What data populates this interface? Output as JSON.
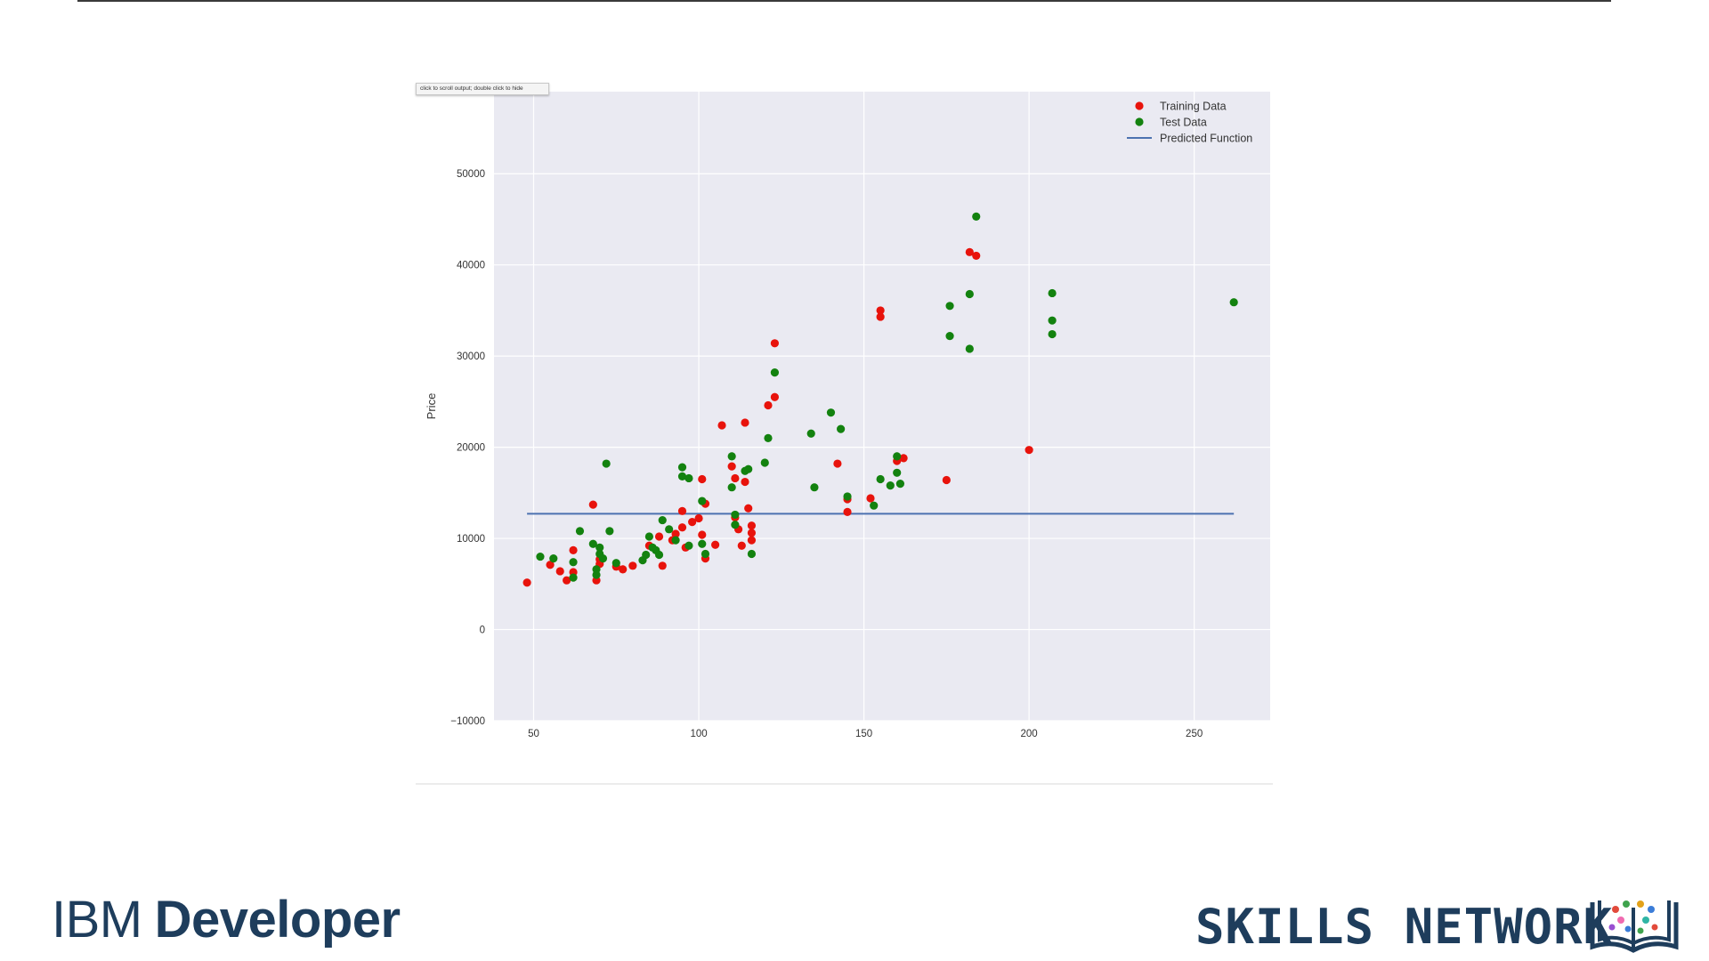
{
  "notebook": {
    "output_tooltip": "click to scroll output; double click to hide"
  },
  "branding": {
    "ibm_prefix": "IBM",
    "ibm_product": "Developer",
    "skills_network": "SKILLS NETWORK"
  },
  "colors": {
    "plot_background": "#eaeaf2",
    "grid": "#ffffff",
    "training": "#e8130c",
    "test": "#13820f",
    "predicted": "#4c72b0",
    "brand_blue": "#1e3d5c"
  },
  "icons": [
    "book-network-icon"
  ],
  "chart_data": {
    "type": "scatter",
    "title": "",
    "xlabel": "",
    "ylabel": "Price",
    "xlim": [
      38,
      273
    ],
    "ylim": [
      -10000,
      59000
    ],
    "xticks": [
      50,
      100,
      150,
      200,
      250
    ],
    "yticks": [
      -10000,
      0,
      10000,
      20000,
      30000,
      40000,
      50000
    ],
    "ytick_labels": [
      "−10000",
      "0",
      "10000",
      "20000",
      "30000",
      "40000",
      "50000"
    ],
    "grid": true,
    "legend_position": "top-right",
    "legend": [
      "Training Data",
      "Test Data",
      "Predicted Function"
    ],
    "series": [
      {
        "name": "Training Data",
        "type": "scatter",
        "color": "#e8130c",
        "points": [
          [
            48,
            5150
          ],
          [
            55,
            7100
          ],
          [
            58,
            6400
          ],
          [
            60,
            5400
          ],
          [
            62,
            8700
          ],
          [
            62,
            6300
          ],
          [
            68,
            13700
          ],
          [
            69,
            5400
          ],
          [
            70,
            7200
          ],
          [
            70,
            7700
          ],
          [
            75,
            6900
          ],
          [
            77,
            6600
          ],
          [
            80,
            7000
          ],
          [
            85,
            9200
          ],
          [
            88,
            10200
          ],
          [
            89,
            7000
          ],
          [
            92,
            9800
          ],
          [
            93,
            10500
          ],
          [
            95,
            11200
          ],
          [
            95,
            13000
          ],
          [
            96,
            9000
          ],
          [
            98,
            11800
          ],
          [
            100,
            12200
          ],
          [
            101,
            10400
          ],
          [
            101,
            16500
          ],
          [
            102,
            13800
          ],
          [
            102,
            7800
          ],
          [
            105,
            9300
          ],
          [
            107,
            22400
          ],
          [
            110,
            17900
          ],
          [
            111,
            16600
          ],
          [
            111,
            12300
          ],
          [
            112,
            11000
          ],
          [
            113,
            9200
          ],
          [
            114,
            22700
          ],
          [
            114,
            16200
          ],
          [
            115,
            13300
          ],
          [
            116,
            11400
          ],
          [
            116,
            10600
          ],
          [
            116,
            9800
          ],
          [
            121,
            24600
          ],
          [
            123,
            31400
          ],
          [
            123,
            25500
          ],
          [
            142,
            18200
          ],
          [
            145,
            14300
          ],
          [
            145,
            12900
          ],
          [
            152,
            14400
          ],
          [
            155,
            35000
          ],
          [
            155,
            34300
          ],
          [
            160,
            18500
          ],
          [
            162,
            18800
          ],
          [
            175,
            16400
          ],
          [
            182,
            41400
          ],
          [
            184,
            41000
          ],
          [
            200,
            19700
          ]
        ]
      },
      {
        "name": "Test Data",
        "type": "scatter",
        "color": "#13820f",
        "points": [
          [
            52,
            8000
          ],
          [
            56,
            7800
          ],
          [
            62,
            5700
          ],
          [
            62,
            7400
          ],
          [
            64,
            10800
          ],
          [
            68,
            9400
          ],
          [
            69,
            6600
          ],
          [
            69,
            6000
          ],
          [
            70,
            8300
          ],
          [
            70,
            9000
          ],
          [
            71,
            7800
          ],
          [
            72,
            18200
          ],
          [
            73,
            10800
          ],
          [
            75,
            7300
          ],
          [
            83,
            7600
          ],
          [
            84,
            8200
          ],
          [
            85,
            10200
          ],
          [
            86,
            9000
          ],
          [
            87,
            8700
          ],
          [
            88,
            8200
          ],
          [
            89,
            12000
          ],
          [
            91,
            11000
          ],
          [
            93,
            9800
          ],
          [
            95,
            16800
          ],
          [
            95,
            17800
          ],
          [
            97,
            16600
          ],
          [
            97,
            9200
          ],
          [
            101,
            14100
          ],
          [
            101,
            9400
          ],
          [
            102,
            8300
          ],
          [
            110,
            19000
          ],
          [
            110,
            15600
          ],
          [
            111,
            12600
          ],
          [
            111,
            11500
          ],
          [
            114,
            17400
          ],
          [
            115,
            17600
          ],
          [
            116,
            8300
          ],
          [
            120,
            18300
          ],
          [
            121,
            21000
          ],
          [
            123,
            28200
          ],
          [
            134,
            21500
          ],
          [
            135,
            15600
          ],
          [
            140,
            23800
          ],
          [
            143,
            22000
          ],
          [
            145,
            14600
          ],
          [
            153,
            13600
          ],
          [
            155,
            16500
          ],
          [
            158,
            15800
          ],
          [
            160,
            19000
          ],
          [
            160,
            17200
          ],
          [
            161,
            16000
          ],
          [
            176,
            35500
          ],
          [
            176,
            32200
          ],
          [
            182,
            36800
          ],
          [
            182,
            30800
          ],
          [
            184,
            45300
          ],
          [
            207,
            36900
          ],
          [
            207,
            33900
          ],
          [
            207,
            32400
          ],
          [
            262,
            35900
          ]
        ]
      },
      {
        "name": "Predicted Function",
        "type": "line",
        "color": "#4c72b0",
        "x": [
          48,
          262
        ],
        "y": [
          12700,
          12700
        ]
      }
    ]
  }
}
